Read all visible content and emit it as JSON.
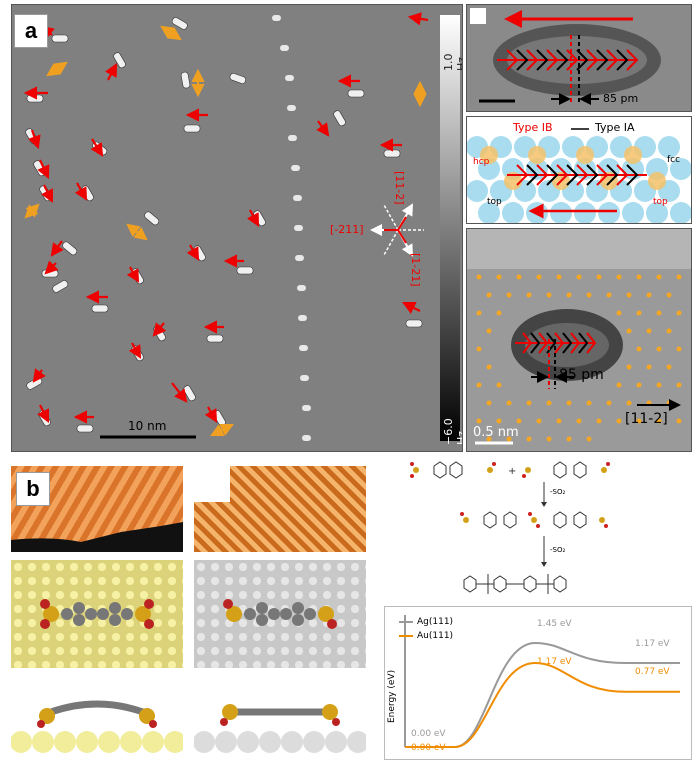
{
  "panel_a": {
    "label": "a",
    "colorbar_top": "1.0 Hz",
    "colorbar_bottom": "−6.0 Hz",
    "scale_bar": "10 nm",
    "dir_1": "[11-2]",
    "dir_2": "[-211]",
    "dir_3": "[1-21]"
  },
  "inset_top": {
    "measure": "85 pm"
  },
  "inset_scheme": {
    "type_ib": "Type IB",
    "type_ia": "Type IA",
    "hcp": "hcp",
    "fcc": "fcc",
    "top_left": "top",
    "top_right": "top"
  },
  "inset_bottom": {
    "measure": "85 pm",
    "scale_bar": "0.5 nm",
    "direction": "[11-2]"
  },
  "panel_b": {
    "label": "b",
    "minus_so2_1": "-SO₂",
    "minus_so2_2": "-SO₂"
  },
  "energy_chart": {
    "ylabel": "Energy (eV)",
    "legend_ag": "Ag(111)",
    "legend_au": "Au(111)",
    "ag_color": "#999999",
    "au_color": "#f08c00",
    "labels": {
      "ag_start": "0.00 eV",
      "au_start": "0.00 eV",
      "ag_peak": "1.45 eV",
      "au_peak": "1.17 eV",
      "ag_end": "1.17 eV",
      "au_end": "0.77 eV"
    }
  },
  "chart_data": {
    "type": "line",
    "title": "",
    "xlabel": "",
    "ylabel": "Energy (eV)",
    "series": [
      {
        "name": "Ag(111)",
        "values": [
          0.0,
          0.0,
          1.45,
          1.17,
          1.17
        ]
      },
      {
        "name": "Au(111)",
        "values": [
          0.0,
          0.0,
          1.17,
          0.77,
          0.77
        ]
      }
    ],
    "ylim": [
      0,
      1.7
    ],
    "grid": false,
    "legend": "top-left"
  }
}
